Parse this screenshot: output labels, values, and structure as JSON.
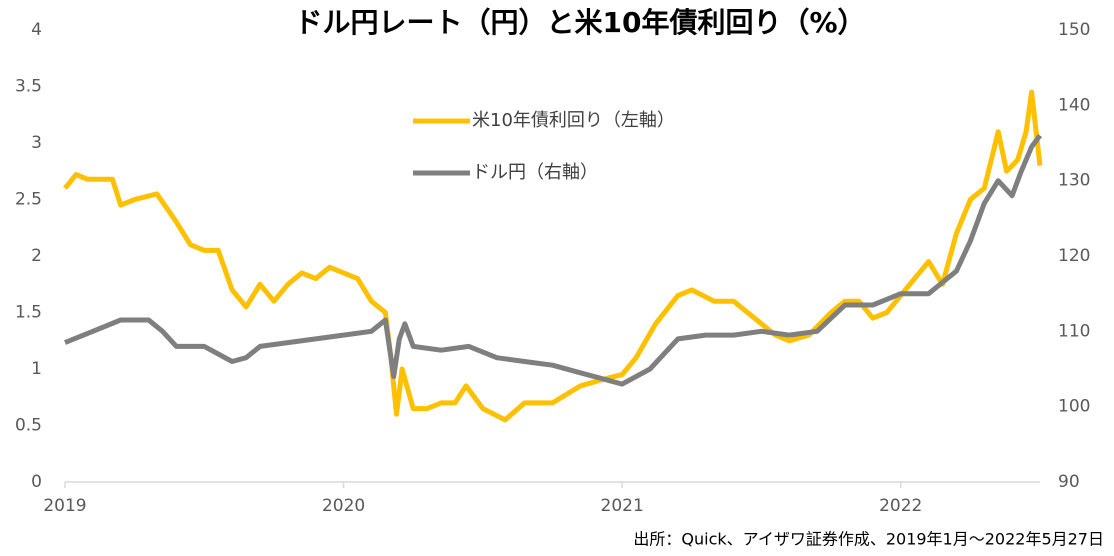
{
  "chart_data": {
    "type": "line",
    "title": "ドル円レート（円）と米10年債利回り（%）",
    "note": "出所：Quick、アイザワ証券作成、2019年1月～2022年5月27日",
    "xlim": [
      2019,
      2022.5
    ],
    "xticks": [
      2019,
      2020,
      2021,
      2022
    ],
    "ylim": [
      0,
      4
    ],
    "yticks": [
      0,
      0.5,
      1,
      1.5,
      2,
      2.5,
      3,
      3.5,
      4
    ],
    "y2lim": [
      90,
      150
    ],
    "y2ticks": [
      90,
      100,
      110,
      120,
      130,
      140,
      150
    ],
    "series": [
      {
        "name": "米10年債利回り（左軸）",
        "color": "#FFC000",
        "axis": "y",
        "x": [
          2019.0,
          2019.04,
          2019.08,
          2019.17,
          2019.2,
          2019.25,
          2019.33,
          2019.4,
          2019.45,
          2019.5,
          2019.55,
          2019.6,
          2019.65,
          2019.7,
          2019.75,
          2019.8,
          2019.85,
          2019.9,
          2019.95,
          2020.0,
          2020.05,
          2020.1,
          2020.15,
          2020.17,
          2020.19,
          2020.21,
          2020.25,
          2020.3,
          2020.35,
          2020.4,
          2020.44,
          2020.5,
          2020.58,
          2020.65,
          2020.75,
          2020.85,
          2020.95,
          2021.0,
          2021.05,
          2021.12,
          2021.2,
          2021.25,
          2021.33,
          2021.4,
          2021.45,
          2021.55,
          2021.6,
          2021.67,
          2021.75,
          2021.8,
          2021.85,
          2021.9,
          2021.95,
          2022.0,
          2022.05,
          2022.1,
          2022.15,
          2022.2,
          2022.25,
          2022.3,
          2022.35,
          2022.38,
          2022.42,
          2022.45,
          2022.47,
          2022.5
        ],
        "values": [
          2.6,
          2.72,
          2.68,
          2.68,
          2.45,
          2.5,
          2.55,
          2.3,
          2.1,
          2.05,
          2.05,
          1.7,
          1.55,
          1.75,
          1.6,
          1.75,
          1.85,
          1.8,
          1.9,
          1.85,
          1.8,
          1.6,
          1.5,
          1.1,
          0.6,
          1.0,
          0.65,
          0.65,
          0.7,
          0.7,
          0.85,
          0.65,
          0.55,
          0.7,
          0.7,
          0.85,
          0.92,
          0.95,
          1.1,
          1.4,
          1.65,
          1.7,
          1.6,
          1.6,
          1.5,
          1.3,
          1.25,
          1.3,
          1.5,
          1.6,
          1.6,
          1.45,
          1.5,
          1.65,
          1.8,
          1.95,
          1.75,
          2.2,
          2.5,
          2.6,
          3.1,
          2.75,
          2.85,
          3.1,
          3.45,
          2.8
        ]
      },
      {
        "name": "ドル円（右軸）",
        "color": "#7F7F7F",
        "axis": "y2",
        "x": [
          2019.0,
          2019.1,
          2019.2,
          2019.3,
          2019.35,
          2019.4,
          2019.5,
          2019.6,
          2019.65,
          2019.7,
          2019.8,
          2019.9,
          2020.0,
          2020.1,
          2020.15,
          2020.18,
          2020.2,
          2020.22,
          2020.25,
          2020.35,
          2020.45,
          2020.55,
          2020.65,
          2020.75,
          2020.85,
          2020.95,
          2021.0,
          2021.1,
          2021.2,
          2021.3,
          2021.4,
          2021.5,
          2021.6,
          2021.7,
          2021.8,
          2021.9,
          2022.0,
          2022.1,
          2022.2,
          2022.25,
          2022.3,
          2022.35,
          2022.4,
          2022.43,
          2022.47,
          2022.5
        ],
        "values": [
          108.5,
          110,
          111.5,
          111.5,
          110,
          108,
          108,
          106,
          106.5,
          108,
          108.5,
          109,
          109.5,
          110,
          111.5,
          104,
          109,
          111,
          108,
          107.5,
          108,
          106.5,
          106,
          105.5,
          104.5,
          103.5,
          103,
          105,
          109,
          109.5,
          109.5,
          110,
          109.5,
          110,
          113.5,
          113.5,
          115,
          115,
          118,
          122,
          127,
          130,
          128,
          131,
          134.5,
          136
        ]
      }
    ]
  }
}
